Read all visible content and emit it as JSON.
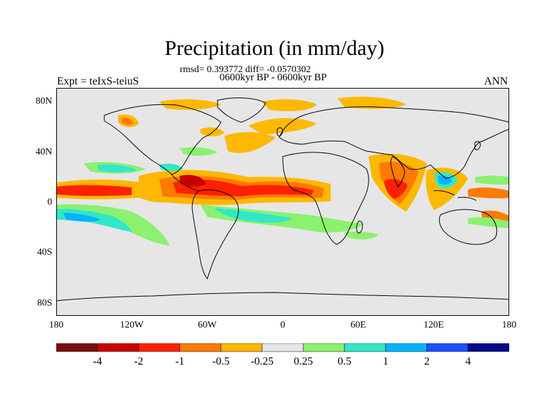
{
  "title": "Precipitation (in mm/day)",
  "stats": "rmsd= 0.393772 diff= -0.0570302",
  "period": "0600kyr BP - 0600kyr BP",
  "expt": "Expt = teIxS-teiuS",
  "season": "ANN",
  "lat_labels": [
    "80N",
    "40N",
    "0",
    "40S",
    "80S"
  ],
  "lon_labels": [
    "180",
    "120W",
    "60W",
    "0",
    "60E",
    "120E",
    "180"
  ],
  "colorbar": {
    "colors": [
      "#7a0c0c",
      "#c80000",
      "#ff2000",
      "#ff7a00",
      "#ffb800",
      "#e6e6e6",
      "#8cf070",
      "#30e8c8",
      "#00b4ff",
      "#1e50ff",
      "#000a8c"
    ],
    "labels": [
      "-4",
      "-2",
      "-1",
      "-0.5",
      "-0.25",
      "0.25",
      "0.5",
      "1",
      "2",
      "4"
    ]
  },
  "colors": {
    "ocean_background": "#e6e6e6",
    "coastline": "#000000"
  }
}
